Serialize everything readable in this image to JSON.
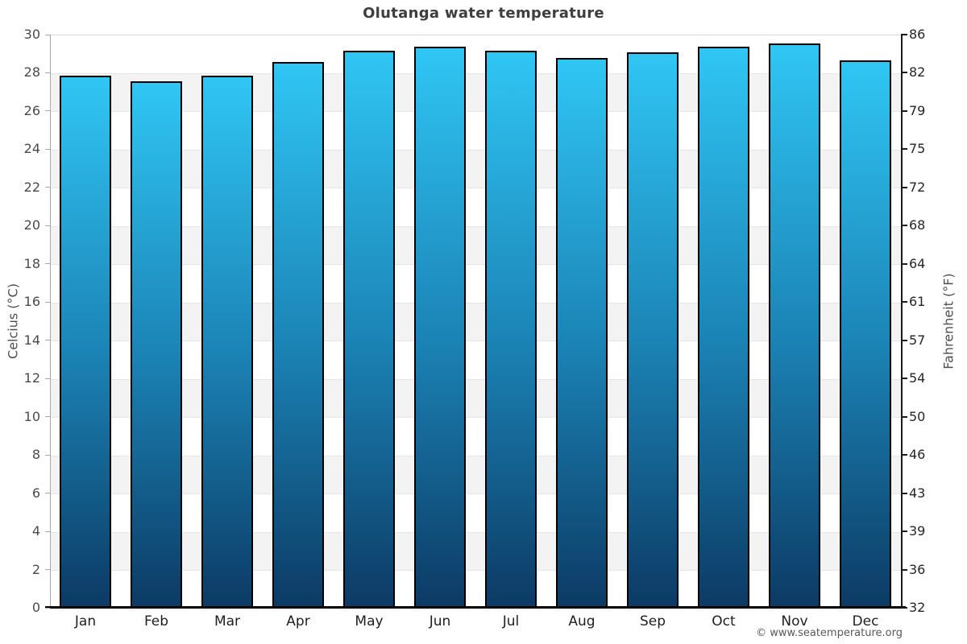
{
  "title": "Olutanga water temperature",
  "watermark": "© www.seatemperature.org",
  "axes": {
    "left_label": "Celcius (°C)",
    "right_label": "Fahrenheit (°F)"
  },
  "chart_data": {
    "type": "bar",
    "title": "Olutanga water temperature",
    "categories": [
      "Jan",
      "Feb",
      "Mar",
      "Apr",
      "May",
      "Jun",
      "Jul",
      "Aug",
      "Sep",
      "Oct",
      "Nov",
      "Dec"
    ],
    "series": [
      {
        "name": "Water temperature (°C)",
        "values": [
          27.9,
          27.6,
          27.9,
          28.6,
          29.2,
          29.4,
          29.2,
          28.8,
          29.1,
          29.4,
          29.6,
          28.7
        ]
      }
    ],
    "xlabel": "",
    "ylabel_left": "Celcius (°C)",
    "ylabel_right": "Fahrenheit (°F)",
    "ylim_celsius": [
      0,
      30
    ],
    "ylim_fahrenheit": [
      32,
      86
    ],
    "left_ticks_celsius": [
      0,
      2,
      4,
      6,
      8,
      10,
      12,
      14,
      16,
      18,
      20,
      22,
      24,
      26,
      28,
      30
    ],
    "right_ticks_fahrenheit": [
      "32",
      "36",
      "39",
      "43",
      "46",
      "50",
      "54",
      "57",
      "61",
      "64",
      "68",
      "72",
      "75",
      "79",
      "82",
      "86"
    ],
    "grid": "alternating horizontal bands every 2°C",
    "legend": "none"
  },
  "colors": {
    "bar_gradient_top": "#30c6f4",
    "bar_gradient_mid": "#1b83b5",
    "bar_gradient_bottom": "#0c3a64",
    "bar_border": "#000000",
    "band_gray": "#f3f3f3",
    "band_white": "#ffffff",
    "title_text": "#3e3e3e",
    "tick_text": "#4a4a4a",
    "month_text": "#1f1f1f",
    "watermark_text": "#595959"
  }
}
